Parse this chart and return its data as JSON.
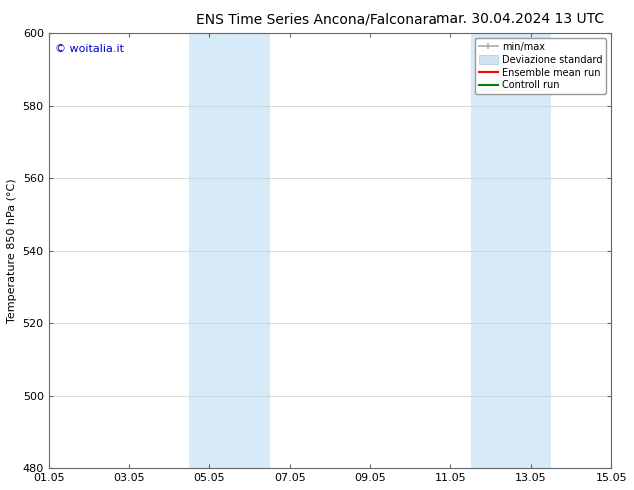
{
  "title_left": "ENS Time Series Ancona/Falconara",
  "title_right": "mar. 30.04.2024 13 UTC",
  "ylabel": "Temperature 850 hPa (°C)",
  "ylim": [
    480,
    600
  ],
  "yticks": [
    480,
    500,
    520,
    540,
    560,
    580,
    600
  ],
  "xlim_start": 0,
  "xlim_end": 14,
  "xtick_labels": [
    "01.05",
    "03.05",
    "05.05",
    "07.05",
    "09.05",
    "11.05",
    "13.05",
    "15.05"
  ],
  "xtick_positions": [
    0,
    2,
    4,
    6,
    8,
    10,
    12,
    14
  ],
  "shaded_bands": [
    {
      "x_start": 3.5,
      "x_end": 5.5,
      "color": "#d6eaf8"
    },
    {
      "x_start": 10.5,
      "x_end": 12.5,
      "color": "#d6eaf8"
    }
  ],
  "watermark_text": "© woitalia.it",
  "watermark_color": "#0000cc",
  "legend_items": [
    {
      "label": "min/max",
      "color": "#aaaaaa",
      "lw": 1.5
    },
    {
      "label": "Deviazione standard",
      "color": "#d0e4f0",
      "lw": 6
    },
    {
      "label": "Ensemble mean run",
      "color": "red",
      "lw": 1.5
    },
    {
      "label": "Controll run",
      "color": "green",
      "lw": 1.5
    }
  ],
  "background_color": "#ffffff",
  "title_fontsize": 10,
  "tick_fontsize": 8,
  "ylabel_fontsize": 8,
  "legend_fontsize": 7
}
